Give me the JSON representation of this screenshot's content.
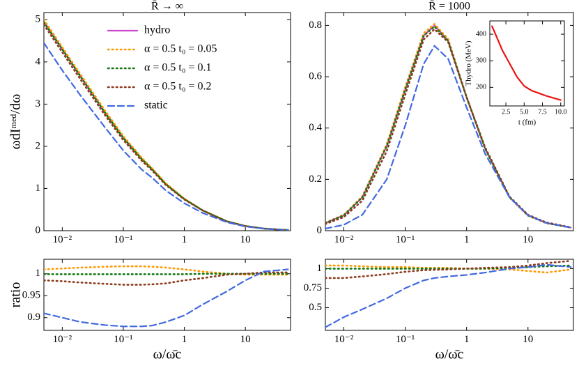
{
  "chart_data": [
    {
      "type": "line",
      "title": "R̄ → ∞",
      "ylabel": "ωdIᵐᵉᵈ/dω",
      "xscale": "log",
      "legend": "upper right",
      "x": [
        0.005,
        0.01,
        0.02,
        0.05,
        0.1,
        0.2,
        0.3,
        0.5,
        1,
        2,
        5,
        10,
        20,
        50
      ],
      "xlim": [
        0.005,
        55
      ],
      "xticks": [
        {
          "value": 0.01,
          "label": "10⁻²"
        },
        {
          "value": 0.1,
          "label": "10⁻¹"
        },
        1,
        10
      ],
      "ylim": [
        0,
        5.17
      ],
      "yticks": [
        0,
        1,
        2,
        3,
        4,
        5
      ],
      "series": [
        {
          "name": "hydro",
          "color": "#cc44cc",
          "style": "solid",
          "values": [
            4.95,
            4.3,
            3.65,
            2.8,
            2.2,
            1.7,
            1.45,
            1.1,
            0.75,
            0.48,
            0.22,
            0.11,
            0.05,
            0.015
          ]
        },
        {
          "name": "α = 0.5 t₀ = 0.05",
          "color": "#ff9900",
          "style": "dotted",
          "values": [
            5.0,
            4.35,
            3.7,
            2.85,
            2.24,
            1.73,
            1.47,
            1.12,
            0.76,
            0.48,
            0.22,
            0.11,
            0.05,
            0.015
          ]
        },
        {
          "name": "α = 0.5 t₀ = 0.1",
          "color": "#117711",
          "style": "dotted",
          "values": [
            4.94,
            4.3,
            3.65,
            2.8,
            2.2,
            1.7,
            1.45,
            1.1,
            0.75,
            0.48,
            0.22,
            0.11,
            0.05,
            0.015
          ]
        },
        {
          "name": "α = 0.5 t₀ = 0.2",
          "color": "#8b3a1a",
          "style": "dotted",
          "values": [
            4.88,
            4.23,
            3.58,
            2.74,
            2.15,
            1.66,
            1.42,
            1.08,
            0.74,
            0.48,
            0.22,
            0.11,
            0.05,
            0.015
          ]
        },
        {
          "name": "static",
          "color": "#4169e1",
          "style": "dashed",
          "values": [
            4.45,
            3.8,
            3.2,
            2.45,
            1.9,
            1.45,
            1.25,
            0.95,
            0.65,
            0.42,
            0.2,
            0.1,
            0.05,
            0.015
          ]
        }
      ]
    },
    {
      "type": "line",
      "title": "R̄ = 1000",
      "xscale": "log",
      "x": [
        0.005,
        0.01,
        0.02,
        0.05,
        0.1,
        0.2,
        0.3,
        0.5,
        1,
        2,
        5,
        10,
        20,
        50
      ],
      "xlim": [
        0.005,
        55
      ],
      "xticks": [
        {
          "value": 0.01,
          "label": "10⁻²"
        },
        {
          "value": 0.1,
          "label": "10⁻¹"
        },
        1,
        10
      ],
      "ylim": [
        0,
        0.85
      ],
      "yticks": [
        0,
        0.2,
        0.4,
        0.6,
        0.8
      ],
      "series": [
        {
          "color": "#cc44cc",
          "style": "solid",
          "values": [
            0.03,
            0.06,
            0.13,
            0.33,
            0.55,
            0.76,
            0.8,
            0.74,
            0.52,
            0.32,
            0.13,
            0.06,
            0.03,
            0.012
          ]
        },
        {
          "color": "#ff9900",
          "style": "dotted",
          "values": [
            0.031,
            0.062,
            0.134,
            0.337,
            0.56,
            0.77,
            0.805,
            0.747,
            0.52,
            0.32,
            0.13,
            0.058,
            0.029,
            0.012
          ]
        },
        {
          "color": "#117711",
          "style": "dotted",
          "values": [
            0.03,
            0.06,
            0.13,
            0.33,
            0.55,
            0.76,
            0.795,
            0.74,
            0.52,
            0.32,
            0.13,
            0.06,
            0.03,
            0.012
          ]
        },
        {
          "color": "#8b3a1a",
          "style": "dotted",
          "values": [
            0.026,
            0.053,
            0.117,
            0.31,
            0.53,
            0.745,
            0.785,
            0.735,
            0.52,
            0.325,
            0.133,
            0.062,
            0.032,
            0.013
          ]
        },
        {
          "color": "#4169e1",
          "style": "dashed",
          "values": [
            0.008,
            0.023,
            0.062,
            0.2,
            0.41,
            0.65,
            0.72,
            0.67,
            0.48,
            0.3,
            0.13,
            0.06,
            0.03,
            0.012
          ]
        }
      ]
    },
    {
      "type": "line",
      "ylabel": "ratio",
      "xlabel": "ω/ω̄c",
      "xscale": "log",
      "x": [
        0.005,
        0.01,
        0.02,
        0.05,
        0.1,
        0.2,
        0.3,
        0.5,
        1,
        2,
        5,
        10,
        20,
        50
      ],
      "xlim": [
        0.005,
        55
      ],
      "xticks": [
        {
          "value": 0.01,
          "label": "10⁻²"
        },
        {
          "value": 0.1,
          "label": "10⁻¹"
        },
        1,
        10
      ],
      "ylim": [
        0.871,
        1.033
      ],
      "yticks": [
        0.9,
        0.95,
        1
      ],
      "series": [
        {
          "color": "#ff9900",
          "style": "dotted",
          "values": [
            1.01,
            1.012,
            1.014,
            1.016,
            1.017,
            1.017,
            1.016,
            1.014,
            1.01,
            1.005,
            1.0,
            0.998,
            0.998,
            0.998
          ]
        },
        {
          "color": "#117711",
          "style": "dotted",
          "values": [
            0.999,
            0.999,
            0.999,
            0.999,
            0.999,
            0.999,
            0.999,
            0.999,
            0.999,
            1.0,
            1.0,
            1.0,
            1.0,
            1.0
          ]
        },
        {
          "color": "#8b3a1a",
          "style": "dotted",
          "values": [
            0.985,
            0.983,
            0.98,
            0.977,
            0.975,
            0.975,
            0.976,
            0.978,
            0.985,
            0.99,
            0.998,
            1.0,
            1.003,
            1.003
          ]
        },
        {
          "color": "#4169e1",
          "style": "dashed",
          "values": [
            0.91,
            0.9,
            0.89,
            0.883,
            0.88,
            0.88,
            0.882,
            0.89,
            0.905,
            0.93,
            0.96,
            0.985,
            1.005,
            1.01
          ]
        }
      ]
    },
    {
      "type": "line",
      "xlabel": "ω/ω̄c",
      "xscale": "log",
      "x": [
        0.005,
        0.01,
        0.02,
        0.05,
        0.1,
        0.2,
        0.3,
        0.5,
        1,
        2,
        5,
        10,
        20,
        50
      ],
      "xlim": [
        0.005,
        55
      ],
      "xticks": [
        {
          "value": 0.01,
          "label": "10⁻²"
        },
        {
          "value": 0.1,
          "label": "10⁻¹"
        },
        1,
        10
      ],
      "ylim": [
        0.21,
        1.12
      ],
      "yticks": [
        0.5,
        0.75,
        1
      ],
      "series": [
        {
          "color": "#ff9900",
          "style": "dotted",
          "values": [
            1.04,
            1.04,
            1.03,
            1.02,
            1.02,
            1.01,
            1.01,
            1.01,
            1.0,
            1.0,
            0.99,
            0.97,
            0.95,
            0.99
          ]
        },
        {
          "color": "#117711",
          "style": "dotted",
          "values": [
            1.0,
            1.0,
            1.0,
            1.0,
            1.0,
            1.0,
            1.0,
            1.0,
            1.0,
            1.0,
            1.01,
            1.02,
            1.03,
            1.04
          ]
        },
        {
          "color": "#8b3a1a",
          "style": "dotted",
          "values": [
            0.88,
            0.88,
            0.9,
            0.93,
            0.96,
            0.98,
            0.985,
            0.99,
            1.0,
            1.01,
            1.02,
            1.04,
            1.07,
            1.1
          ]
        },
        {
          "color": "#4169e1",
          "style": "dashed",
          "values": [
            0.25,
            0.38,
            0.48,
            0.62,
            0.75,
            0.85,
            0.88,
            0.9,
            0.92,
            0.95,
            1.0,
            1.02,
            1.05,
            1.02
          ]
        }
      ]
    },
    {
      "type": "line",
      "xlabel": "t (fm)",
      "ylabel": "Thydro (MeV)",
      "x": [
        0.6,
        1,
        2,
        3,
        4,
        5,
        6,
        7,
        8,
        9,
        10
      ],
      "xlim": [
        0.3,
        10.5
      ],
      "xticks": [
        2.5,
        {
          "value": 5,
          "label": "5.0"
        },
        7.5,
        {
          "value": 10,
          "label": "10.0"
        }
      ],
      "ylim": [
        130,
        450
      ],
      "yticks": [
        200,
        300,
        400
      ],
      "series": [
        {
          "color": "#ee1111",
          "style": "solid",
          "values": [
            430,
            405,
            340,
            290,
            240,
            205,
            188,
            178,
            168,
            160,
            152
          ]
        }
      ]
    }
  ]
}
